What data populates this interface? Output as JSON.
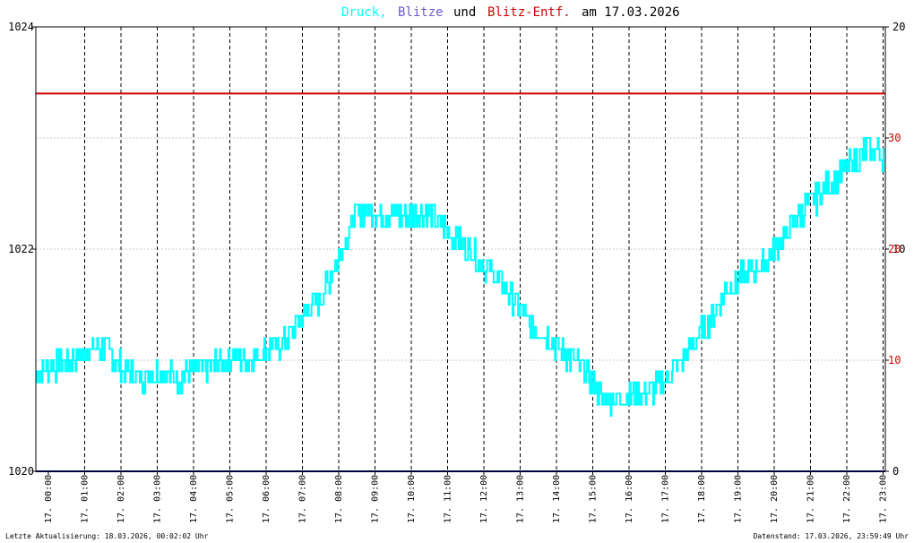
{
  "title": {
    "part1": "Druck,",
    "part2": "Blitze",
    "part3": "und",
    "part4": "Blitz-Entf.",
    "part5": "am 17.03.2026"
  },
  "colors": {
    "pressure": "#00ffff",
    "lightning": "#6a5acd",
    "distance": "#cc0000",
    "baseline": "#000080",
    "text": "#000000"
  },
  "footer": {
    "left": "Letzte Aktualisierung: 18.03.2026, 00:02:02 Uhr",
    "right": "Datenstand: 17.03.2026, 23:59:49 Uhr"
  },
  "chart_data": {
    "type": "line",
    "title": "Druck, Blitze und Blitz-Entf. am 17.03.2026",
    "x_tick_labels": [
      "17. 00:00",
      "17. 01:00",
      "17. 02:00",
      "17. 03:00",
      "17. 04:00",
      "17. 05:00",
      "17. 06:00",
      "17. 07:00",
      "17. 08:00",
      "17. 09:00",
      "17. 10:00",
      "17. 11:00",
      "17. 12:00",
      "17. 13:00",
      "17. 14:00",
      "17. 15:00",
      "17. 16:00",
      "17. 17:00",
      "17. 18:00",
      "17. 19:00",
      "17. 20:00",
      "17. 21:00",
      "17. 22:00",
      "17. 23:00"
    ],
    "y_left": {
      "ticks": [
        "1020",
        "1022",
        "1024"
      ],
      "ylim": [
        1020,
        1024
      ]
    },
    "y_right": {
      "ticks_black": [
        "0",
        "10",
        "20"
      ],
      "ticks_red": [
        "10",
        "20",
        "30"
      ],
      "ylim": [
        0,
        40
      ]
    },
    "grid": true,
    "series": [
      {
        "name": "Druck",
        "x_hours": [
          0,
          0.5,
          1,
          1.5,
          2,
          2.5,
          3,
          3.5,
          4,
          4.5,
          5,
          5.5,
          6,
          6.5,
          7,
          7.5,
          8,
          8.5,
          9,
          9.5,
          10,
          10.5,
          11,
          11.5,
          12,
          12.5,
          13,
          13.5,
          14,
          14.5,
          15,
          15.5,
          16,
          16.5,
          17,
          17.5,
          18,
          18.5,
          19,
          19.5,
          20,
          20.5,
          21,
          21.5,
          22,
          22.5,
          23,
          23.5,
          24
        ],
        "values": [
          1020.85,
          1020.95,
          1021.0,
          1021.1,
          1021.1,
          1020.9,
          1020.85,
          1020.9,
          1020.85,
          1020.9,
          1020.95,
          1021.05,
          1021.0,
          1021.1,
          1021.15,
          1021.4,
          1021.55,
          1021.9,
          1022.3,
          1022.35,
          1022.3,
          1022.3,
          1022.35,
          1022.2,
          1022.1,
          1021.9,
          1021.75,
          1021.55,
          1021.3,
          1021.2,
          1021.05,
          1020.9,
          1020.65,
          1020.65,
          1020.7,
          1020.75,
          1020.9,
          1021.1,
          1021.35,
          1021.65,
          1021.75,
          1021.85,
          1022.05,
          1022.3,
          1022.45,
          1022.6,
          1022.75,
          1022.9,
          1022.85
        ],
        "noise": 0.12
      },
      {
        "name": "Blitz-Entf.",
        "x_hours": [
          0,
          24
        ],
        "values": [
          34,
          34
        ]
      },
      {
        "name": "Blitze",
        "x_hours": [
          0,
          24
        ],
        "values": [
          0,
          0
        ]
      }
    ]
  }
}
